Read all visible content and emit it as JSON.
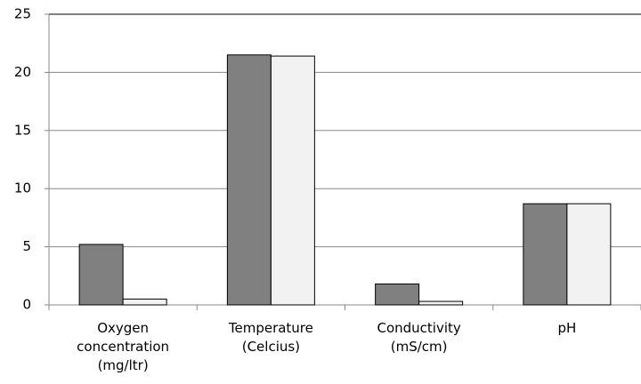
{
  "chart_data": {
    "type": "bar",
    "categories": [
      "Oxygen\nconcentration\n(mg/ltr)",
      "Temperature\n(Celcius)",
      "Conductivity\n(mS/cm)",
      "pH"
    ],
    "series": [
      {
        "color": "#808080",
        "values": [
          5.2,
          21.5,
          1.8,
          8.7
        ]
      },
      {
        "color": "#f2f2f2",
        "values": [
          0.5,
          21.4,
          0.3,
          8.7
        ]
      }
    ],
    "ylim": [
      0,
      25
    ],
    "yticks": [
      0,
      5,
      10,
      15,
      20,
      25
    ],
    "grid": true
  }
}
